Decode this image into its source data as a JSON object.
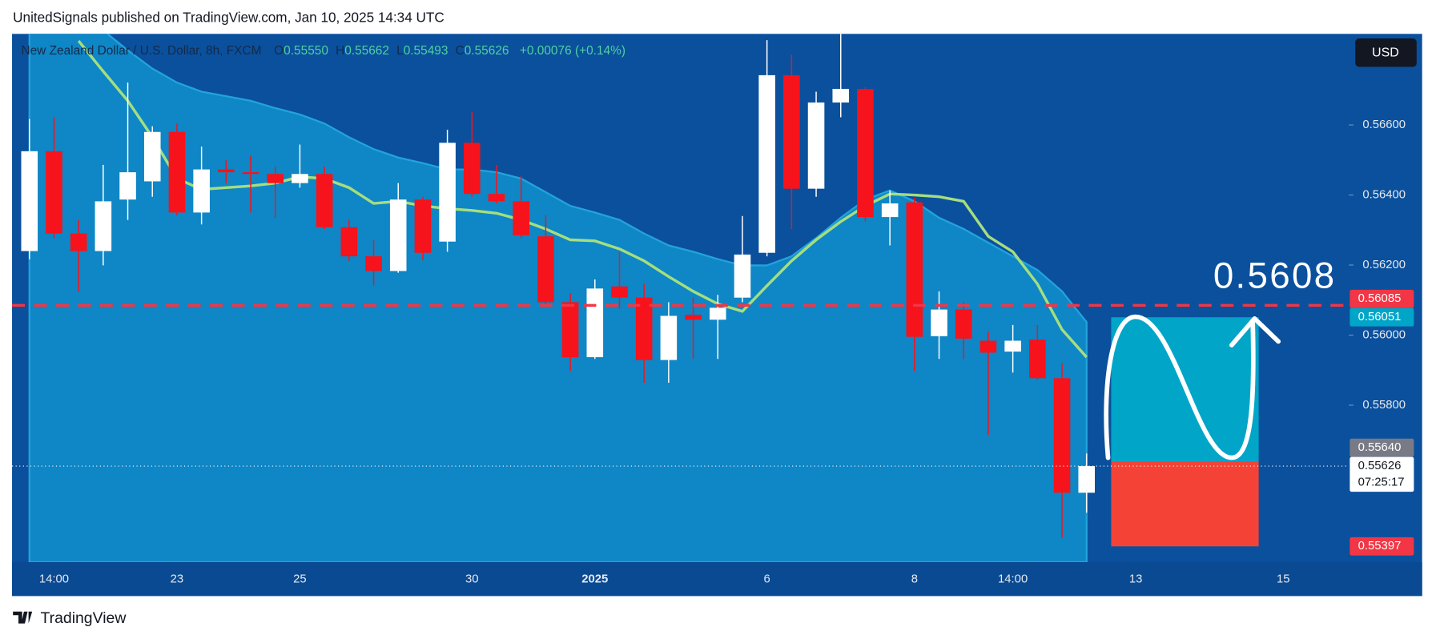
{
  "header": "UnitedSignals published on TradingView.com, Jan 10, 2025 14:34 UTC",
  "footer": "TradingView",
  "chart_data": {
    "type": "candlestick",
    "title": "New Zealand Dollar / U.S. Dollar, 8h, FXCM",
    "legend_ohlc": [
      {
        "key": "O",
        "value": "0.55550"
      },
      {
        "key": "H",
        "value": "0.55662"
      },
      {
        "key": "L",
        "value": "0.55493"
      },
      {
        "key": "C",
        "value": "0.55626"
      }
    ],
    "legend_change": "+0.00076 (+0.14%)",
    "currency": "USD",
    "categories": [
      null,
      "14:00",
      null,
      null,
      null,
      null,
      "23",
      null,
      null,
      null,
      null,
      "25",
      null,
      null,
      null,
      null,
      null,
      null,
      "30",
      null,
      null,
      null,
      null,
      "2025",
      null,
      null,
      null,
      null,
      null,
      null,
      "6",
      null,
      null,
      null,
      null,
      null,
      "8",
      null,
      null,
      null,
      "14:00",
      null,
      null,
      null,
      null,
      "13",
      null,
      null,
      null,
      null,
      null,
      "15",
      null,
      null
    ],
    "open": [
      0.5624,
      0.56525,
      0.5629,
      0.5624,
      0.56387,
      0.56439,
      0.5658,
      0.5635,
      0.56473,
      0.56465,
      0.5646,
      0.56434,
      0.5646,
      0.56308,
      0.56225,
      0.56183,
      0.56387,
      0.56267,
      0.56549,
      0.56403,
      0.56382,
      0.56282,
      0.56094,
      0.55937,
      0.56139,
      0.56107,
      0.55929,
      0.56058,
      0.56044,
      0.56107,
      0.56235,
      0.56742,
      0.56418,
      0.56664,
      0.56703,
      0.56337,
      0.56379,
      0.55997,
      0.56073,
      0.55984,
      0.55953,
      0.55987,
      0.55877,
      0.5555,
      null,
      null,
      null,
      null,
      null,
      null,
      null,
      null,
      null,
      null
    ],
    "high": [
      0.56617,
      0.56622,
      0.56329,
      0.56486,
      0.56721,
      0.56596,
      0.56604,
      0.56538,
      0.56499,
      0.56512,
      0.56481,
      0.56544,
      0.56481,
      0.56329,
      0.56272,
      0.56434,
      0.56395,
      0.56586,
      0.56638,
      0.56486,
      0.56455,
      0.56342,
      0.5612,
      0.56159,
      0.56238,
      0.56146,
      0.56094,
      0.56107,
      0.56115,
      0.5634,
      0.56842,
      0.568,
      0.56695,
      0.5686,
      0.56708,
      0.56413,
      0.56392,
      0.56125,
      0.56094,
      0.5601,
      0.56029,
      0.56029,
      0.55919,
      0.55662,
      null,
      null,
      null,
      null,
      null,
      null,
      null,
      null,
      null,
      null
    ],
    "low": [
      0.56217,
      0.56277,
      0.56125,
      0.56199,
      0.56329,
      0.56395,
      0.56342,
      0.56316,
      0.56434,
      0.5635,
      0.56335,
      0.56421,
      0.56303,
      0.56212,
      0.56141,
      0.56178,
      0.56214,
      0.56238,
      0.56395,
      0.56376,
      0.56277,
      0.56089,
      0.55898,
      0.55932,
      0.56076,
      0.55864,
      0.55864,
      0.55932,
      0.55932,
      0.56094,
      0.56225,
      0.56303,
      0.56395,
      0.56622,
      0.56324,
      0.56256,
      0.55898,
      0.55932,
      0.55932,
      0.55715,
      0.55893,
      0.55872,
      0.55422,
      0.55493,
      null,
      null,
      null,
      null,
      null,
      null,
      null,
      null,
      null,
      null
    ],
    "close": [
      0.56525,
      0.5629,
      0.5624,
      0.56382,
      0.56465,
      0.5658,
      0.5635,
      0.56473,
      0.56465,
      0.5646,
      0.56434,
      0.5646,
      0.56308,
      0.56225,
      0.56183,
      0.56387,
      0.56235,
      0.56549,
      0.56403,
      0.56382,
      0.56285,
      0.56094,
      0.55937,
      0.56133,
      0.56107,
      0.55929,
      0.56055,
      0.56044,
      0.56078,
      0.5623,
      0.56742,
      0.56418,
      0.56664,
      0.56703,
      0.56337,
      0.56376,
      0.55995,
      0.56073,
      0.5599,
      0.5595,
      0.55984,
      0.55877,
      0.5555,
      0.55626,
      null,
      null,
      null,
      null,
      null,
      null,
      null,
      null,
      null,
      null
    ],
    "up_color": "#ffffff",
    "down_color": "#f7131b",
    "overlays": [
      {
        "kind": "area",
        "color": "#0f86c5",
        "values": [
          0.569,
          0.5689,
          0.5688,
          0.5687,
          0.56813,
          0.56761,
          0.56721,
          0.56695,
          0.56682,
          0.56669,
          0.56648,
          0.5663,
          0.56604,
          0.56565,
          0.56531,
          0.56507,
          0.56491,
          0.56473,
          0.56473,
          0.56465,
          0.56447,
          0.56408,
          0.56369,
          0.5635,
          0.56329,
          0.5629,
          0.56256,
          0.56238,
          0.56217,
          0.56199,
          0.56199,
          0.56225,
          0.56277,
          0.56335,
          0.56387,
          0.56413,
          0.56382,
          0.56335,
          0.56303,
          0.56264,
          0.56225,
          0.56186,
          0.56125,
          0.56037,
          null,
          null,
          null,
          null,
          null,
          null,
          null,
          null,
          null,
          null
        ]
      },
      {
        "kind": "line",
        "color": "#a5de7f",
        "values": [
          null,
          null,
          0.5684,
          0.56753,
          0.56669,
          0.56565,
          0.56447,
          0.56416,
          0.56421,
          0.56426,
          0.56434,
          0.56452,
          0.56447,
          0.56421,
          0.56376,
          0.56382,
          0.56369,
          0.56361,
          0.56356,
          0.56348,
          0.56329,
          0.56303,
          0.56272,
          0.56269,
          0.56246,
          0.56212,
          0.56167,
          0.56125,
          0.56089,
          0.56068,
          0.56141,
          0.56212,
          0.56272,
          0.56324,
          0.56369,
          0.56403,
          0.564,
          0.56395,
          0.56382,
          0.56282,
          0.56238,
          0.56146,
          0.56016,
          0.55937,
          null,
          null,
          null,
          null,
          null,
          null,
          null,
          null,
          null,
          null
        ]
      }
    ],
    "ylim": [
      0.55352,
      0.5686
    ],
    "yticks": [
      {
        "value": 0.558,
        "label": "0.55800"
      },
      {
        "value": 0.56,
        "label": "0.56000"
      },
      {
        "value": 0.562,
        "label": "0.56200"
      },
      {
        "value": 0.564,
        "label": "0.56400"
      },
      {
        "value": 0.566,
        "label": "0.56600"
      }
    ],
    "grid": false,
    "level_line": {
      "value": 0.56085,
      "color": "#f23645"
    },
    "annotation": "0.5608",
    "position": {
      "target": 0.56051,
      "entry": 0.5564,
      "stop": 0.55397,
      "start_index": 44,
      "end_index": 50,
      "target_color": "#00a5c8",
      "stop_color": "#f44336"
    },
    "price_markers": [
      {
        "value": 0.56085,
        "label": "0.56085",
        "color": "#f23645"
      },
      {
        "value": 0.56051,
        "label": "0.56051",
        "color": "#00a5c8"
      },
      {
        "value": 0.5564,
        "label": "0.55640",
        "color": "#787b86"
      },
      {
        "value": 0.55626,
        "label": "0.55626",
        "color": "#ffffff",
        "countdown": "07:25:17"
      },
      {
        "value": 0.55397,
        "label": "0.55397",
        "color": "#f23645"
      }
    ]
  }
}
